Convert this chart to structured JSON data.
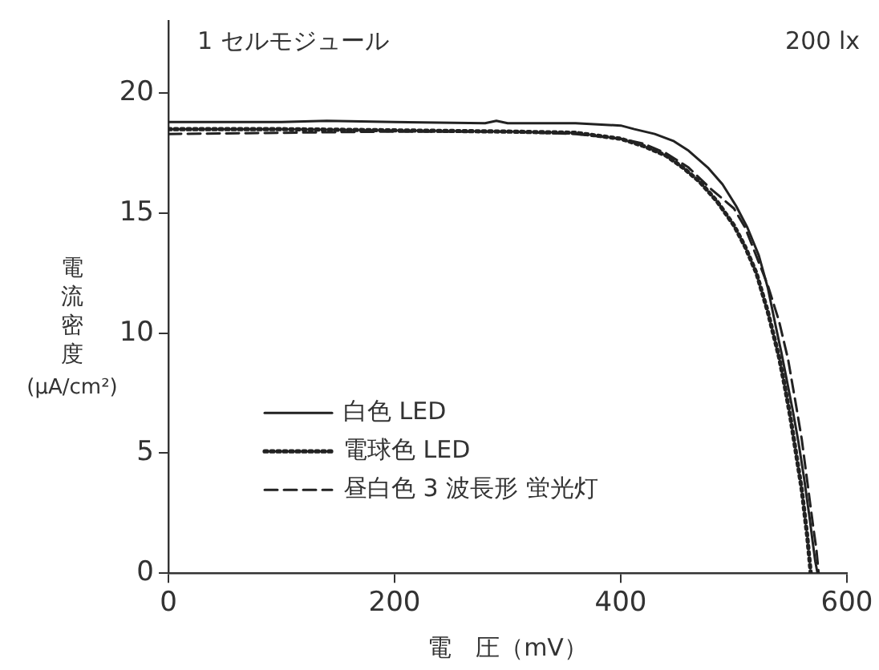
{
  "chart_data": {
    "type": "line",
    "xlabel": "電　圧（mV）",
    "ylabel": "電流密度 (μA/cm²)",
    "annotations": [
      "1 セルモジュール",
      "200 lx"
    ],
    "xlim": [
      0,
      600
    ],
    "ylim": [
      0,
      23
    ],
    "xticks": [
      0,
      200,
      400,
      600
    ],
    "yticks": [
      0,
      5,
      10,
      15,
      20
    ],
    "grid": false,
    "legend": "bottom left",
    "marker": "none",
    "series": [
      {
        "name": "白色 LED",
        "color": "#222222",
        "line_style": "solid",
        "x": [
          0,
          100,
          140,
          200,
          280,
          290,
          300,
          360,
          400,
          412,
          430,
          447,
          460,
          477,
          490,
          502,
          512,
          522,
          530,
          537,
          542,
          547,
          552,
          557,
          562,
          567,
          570,
          572,
          574
        ],
        "values": [
          18.8,
          18.8,
          18.85,
          18.8,
          18.75,
          18.85,
          18.75,
          18.75,
          18.65,
          18.5,
          18.3,
          18.0,
          17.6,
          16.9,
          16.2,
          15.3,
          14.4,
          13.25,
          11.9,
          10.3,
          9.2,
          8.0,
          6.8,
          5.5,
          4.0,
          2.3,
          1.2,
          0.5,
          0
        ]
      },
      {
        "name": "電球色 LED",
        "color": "#222222",
        "line_style": "dotted",
        "x": [
          0,
          100,
          200,
          300,
          360,
          400,
          420,
          440,
          455,
          470,
          485,
          500,
          510,
          520,
          530,
          540,
          545,
          550,
          555,
          560,
          565,
          568
        ],
        "values": [
          18.5,
          18.5,
          18.45,
          18.4,
          18.35,
          18.1,
          17.8,
          17.4,
          16.9,
          16.3,
          15.5,
          14.5,
          13.6,
          12.5,
          10.9,
          9.0,
          7.8,
          6.5,
          5.0,
          3.5,
          1.5,
          0
        ]
      },
      {
        "name": "昼白色 3 波長形 蛍光灯",
        "color": "#222222",
        "line_style": "dashed",
        "x": [
          0,
          100,
          200,
          300,
          360,
          400,
          420,
          440,
          460,
          480,
          500,
          510,
          520,
          530,
          540,
          548,
          555,
          560,
          565,
          570,
          573,
          575
        ],
        "values": [
          18.3,
          18.35,
          18.4,
          18.4,
          18.3,
          18.1,
          17.9,
          17.5,
          16.9,
          16.0,
          15.2,
          14.4,
          13.2,
          12.0,
          10.5,
          8.9,
          7.0,
          5.6,
          3.8,
          2.0,
          1.0,
          0
        ]
      }
    ]
  }
}
